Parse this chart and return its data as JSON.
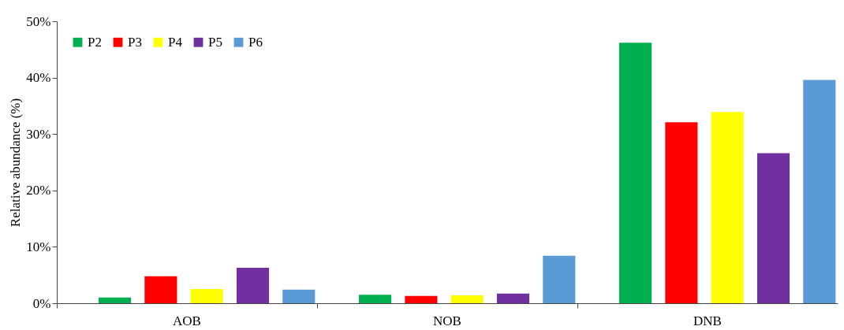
{
  "chart_data": {
    "type": "bar",
    "ylabel": "Relative abundance (%)",
    "categories": [
      "AOB",
      "NOB",
      "DNB"
    ],
    "series": [
      {
        "name": "P2",
        "color": "#00b050",
        "values": [
          1.0,
          1.5,
          46.2
        ]
      },
      {
        "name": "P3",
        "color": "#ff0000",
        "values": [
          4.8,
          1.3,
          32.1
        ]
      },
      {
        "name": "P4",
        "color": "#ffff00",
        "values": [
          2.5,
          1.4,
          33.9
        ]
      },
      {
        "name": "P5",
        "color": "#7030a0",
        "values": [
          6.3,
          1.7,
          26.6
        ]
      },
      {
        "name": "P6",
        "color": "#5b9bd5",
        "values": [
          2.4,
          8.4,
          39.6
        ]
      }
    ],
    "ylim": [
      0,
      50
    ],
    "yticks": [
      {
        "value": 0,
        "label": "0%"
      },
      {
        "value": 10,
        "label": "10%"
      },
      {
        "value": 20,
        "label": "20%"
      },
      {
        "value": 30,
        "label": "30%"
      },
      {
        "value": 40,
        "label": "40%"
      },
      {
        "value": 50,
        "label": "50%"
      }
    ],
    "grid": false,
    "legend": "top left"
  }
}
